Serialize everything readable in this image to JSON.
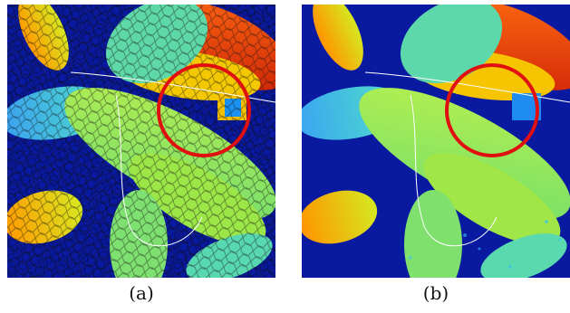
{
  "panels": [
    {
      "id": "a",
      "caption": "(a)",
      "overlay": "superpixel-grid"
    },
    {
      "id": "b",
      "caption": "(b)",
      "overlay": "none"
    }
  ],
  "colors": {
    "background": "#0a1aa0",
    "leaf_red": "#e83a10",
    "leaf_orange": "#ff8a00",
    "leaf_yellow": "#f4d400",
    "leaf_green": "#9ee640",
    "leaf_cyan": "#30c8e8",
    "highlight_circle": "#e01010",
    "grid_line": "#111111"
  },
  "highlight_icon": "red-circle-marker"
}
